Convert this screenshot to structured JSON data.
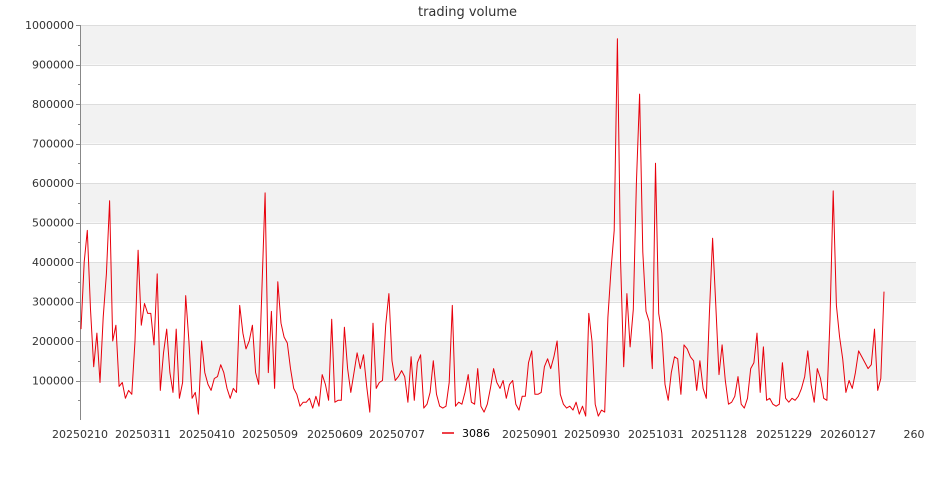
{
  "chart_data": {
    "type": "line",
    "title": "trading volume",
    "xlabel": "",
    "ylabel": "",
    "ylim": [
      0,
      1000000
    ],
    "yticks": [
      "1000000",
      "900000",
      "800000",
      "700000",
      "600000",
      "500000",
      "400000",
      "300000",
      "200000",
      "100000"
    ],
    "xticks": [
      "20250210",
      "20250311",
      "20250410",
      "20250509",
      "20250609",
      "20250707",
      "20250901",
      "20250930",
      "20251031",
      "20251128",
      "20251229",
      "20260127",
      "260"
    ],
    "legend_position": "bottom-center",
    "grid": true,
    "series": [
      {
        "name": "3086",
        "color": "#e8000b",
        "values": [
          230000,
          400000,
          480000,
          280000,
          135000,
          220000,
          95000,
          260000,
          370000,
          555000,
          200000,
          240000,
          85000,
          95000,
          55000,
          75000,
          65000,
          200000,
          430000,
          240000,
          295000,
          270000,
          270000,
          190000,
          370000,
          75000,
          170000,
          230000,
          120000,
          70000,
          230000,
          55000,
          95000,
          315000,
          200000,
          55000,
          70000,
          15000,
          200000,
          120000,
          90000,
          75000,
          105000,
          110000,
          140000,
          120000,
          80000,
          55000,
          80000,
          70000,
          290000,
          220000,
          180000,
          200000,
          240000,
          120000,
          90000,
          330000,
          575000,
          120000,
          275000,
          80000,
          350000,
          245000,
          210000,
          195000,
          130000,
          80000,
          65000,
          35000,
          45000,
          45000,
          55000,
          30000,
          60000,
          35000,
          115000,
          90000,
          50000,
          255000,
          45000,
          50000,
          50000,
          235000,
          130000,
          70000,
          120000,
          170000,
          130000,
          165000,
          85000,
          20000,
          245000,
          80000,
          95000,
          100000,
          240000,
          320000,
          150000,
          100000,
          110000,
          125000,
          110000,
          45000,
          160000,
          50000,
          145000,
          165000,
          30000,
          40000,
          70000,
          150000,
          65000,
          35000,
          30000,
          35000,
          95000,
          290000,
          35000,
          45000,
          40000,
          70000,
          115000,
          45000,
          40000,
          130000,
          35000,
          20000,
          40000,
          80000,
          130000,
          95000,
          80000,
          100000,
          55000,
          90000,
          100000,
          40000,
          25000,
          60000,
          60000,
          145000,
          175000,
          65000,
          65000,
          70000,
          135000,
          155000,
          130000,
          160000,
          200000,
          65000,
          40000,
          30000,
          35000,
          25000,
          45000,
          15000,
          35000,
          10000,
          270000,
          200000,
          40000,
          10000,
          25000,
          20000,
          260000,
          380000,
          480000,
          965000,
          400000,
          135000,
          320000,
          185000,
          280000,
          600000,
          825000,
          425000,
          275000,
          250000,
          130000,
          650000,
          270000,
          220000,
          90000,
          50000,
          120000,
          160000,
          155000,
          65000,
          190000,
          180000,
          160000,
          150000,
          75000,
          150000,
          80000,
          55000,
          270000,
          460000,
          290000,
          115000,
          190000,
          100000,
          40000,
          45000,
          60000,
          110000,
          40000,
          30000,
          55000,
          130000,
          145000,
          220000,
          70000,
          185000,
          50000,
          55000,
          40000,
          35000,
          40000,
          145000,
          55000,
          45000,
          55000,
          50000,
          60000,
          80000,
          110000,
          175000,
          90000,
          45000,
          130000,
          105000,
          55000,
          50000,
          255000,
          580000,
          290000,
          210000,
          155000,
          70000,
          100000,
          80000,
          120000,
          175000,
          160000,
          145000,
          130000,
          140000,
          230000,
          75000,
          105000,
          325000
        ]
      }
    ]
  }
}
